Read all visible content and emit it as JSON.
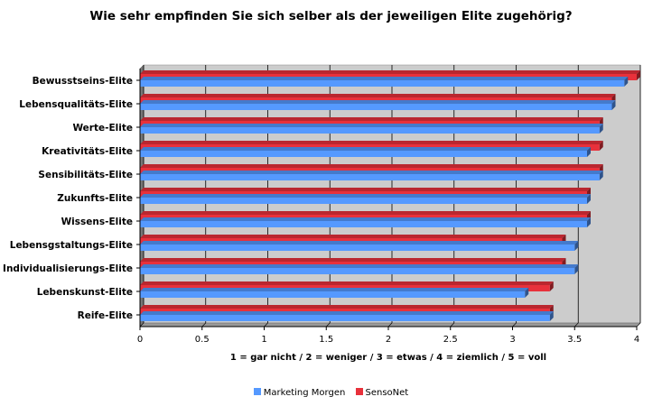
{
  "chart_data": {
    "type": "bar",
    "orientation": "horizontal",
    "title": "Wie sehr empfinden Sie sich selber als der jeweiligen Elite zugehörig?",
    "xlabel": "1 = gar nicht / 2 = weniger / 3 = etwas / 4 = ziemlich / 5 = voll",
    "ylabel": "",
    "categories": [
      "Bewusstseins-Elite",
      "Lebensqualitäts-Elite",
      "Werte-Elite",
      "Kreativitäts-Elite",
      "Sensibilitäts-Elite",
      "Zukunfts-Elite",
      "Wissens-Elite",
      "Lebensgstaltungs-Elite",
      "Individualisierungs-Elite",
      "Lebenskunst-Elite",
      "Reife-Elite"
    ],
    "series": [
      {
        "name": "Marketing Morgen",
        "color": "#5599ff",
        "values": [
          3.9,
          3.8,
          3.7,
          3.6,
          3.7,
          3.6,
          3.6,
          3.5,
          3.5,
          3.1,
          3.3
        ]
      },
      {
        "name": "SensoNet",
        "color": "#e8313b",
        "values": [
          4.0,
          3.8,
          3.7,
          3.7,
          3.7,
          3.6,
          3.6,
          3.4,
          3.4,
          3.3,
          3.3
        ]
      }
    ],
    "xlim": [
      0,
      4
    ],
    "xticks": [
      "0",
      "0.5",
      "1",
      "1.5",
      "2",
      "2.5",
      "3",
      "3.5",
      "4"
    ],
    "grid": true,
    "legend_position": "bottom",
    "wall_color": "#cccccc"
  }
}
